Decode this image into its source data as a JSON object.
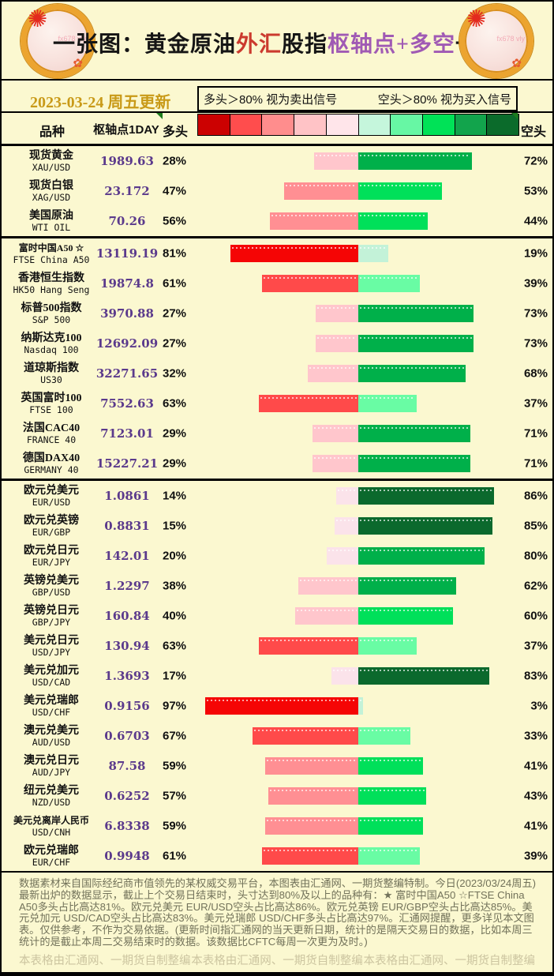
{
  "header": {
    "title_parts": [
      {
        "text": "一张图：黄金原油",
        "color": "#151515"
      },
      {
        "text": "外汇",
        "color": "#CB3A2E"
      },
      {
        "text": "股指",
        "color": "#151515"
      },
      {
        "text": "枢轴点+多空",
        "color": "#A05AB4"
      },
      {
        "text": "一览",
        "color": "#151515"
      }
    ],
    "logo_watermark": "fx678 vly"
  },
  "date_note": "2023-03-24 周五更新",
  "legend": {
    "long_rule": "多头＞80% 视为卖出信号",
    "short_rule": "空头＞80% 视为买入信号"
  },
  "columns": {
    "symbol": "品种",
    "pivot": "枢轴点1DAY",
    "long": "多头",
    "short": "空头"
  },
  "theme": {
    "background": "#FBF8D0",
    "pivot_value_color": "#5B3A8C",
    "date_color": "#C99A18",
    "flag_color": "#1E7C1E",
    "long_bucket_colors": [
      "#FBE3EA",
      "#FFC6CC",
      "#FF8F93",
      "#FF4A4A",
      "#F50505"
    ],
    "short_bucket_colors": [
      "#C3F2D8",
      "#69FCA4",
      "#00E05A",
      "#00B04A",
      "#0B692D"
    ]
  },
  "chart_data": {
    "type": "bar",
    "title": "一张图：黄金原油外汇股指枢轴点+多空一览",
    "update_note": "2023-03-24 周五更新",
    "orientation": "horizontal diverging stacked bars, pivot split point, 2px per percent",
    "color_scale": [
      "#CC0101",
      "#FF4D4D",
      "#FF8D8D",
      "#FFC3C6",
      "#FFE5EA",
      "#C5F6DC",
      "#67F7A4",
      "#00E257",
      "#12A44C",
      "#0B6B2B"
    ],
    "group_sizes": [
      3,
      8,
      13
    ],
    "categories": [
      "现货黄金",
      "现货白银",
      "美国原油",
      "富时中国A50 ☆",
      "香港恒生指数",
      "标普500指数",
      "纳斯达克100",
      "道琼斯指数",
      "英国富时100",
      "法国CAC40",
      "德国DAX40",
      "欧元兑美元",
      "欧元兑英镑",
      "欧元兑日元",
      "英镑兑美元",
      "英镑兑日元",
      "美元兑日元",
      "美元兑加元",
      "美元兑瑞郎",
      "澳元兑美元",
      "澳元兑日元",
      "纽元兑美元",
      "美元兑离岸人民币",
      "欧元兑瑞郎"
    ],
    "codes": [
      "XAU/USD",
      "XAG/USD",
      "WTI OIL",
      "FTSE China A50",
      "HK50 Hang Seng",
      "S&P 500",
      "Nasdaq 100",
      "US30",
      "FTSE 100",
      "FRANCE 40",
      "GERMANY 40",
      "EUR/USD",
      "EUR/GBP",
      "EUR/JPY",
      "GBP/USD",
      "GBP/JPY",
      "USD/JPY",
      "USD/CAD",
      "USD/CHF",
      "AUD/USD",
      "AUD/JPY",
      "NZD/USD",
      "USD/CNH",
      "EUR/CHF"
    ],
    "pivots": [
      "1989.63",
      "23.172",
      "70.26",
      "13119.19",
      "19874.8",
      "3970.88",
      "12692.09",
      "32271.65",
      "7552.63",
      "7123.01",
      "15227.21",
      "1.0861",
      "0.8831",
      "142.01",
      "1.2297",
      "160.84",
      "130.94",
      "1.3693",
      "0.9156",
      "0.6703",
      "87.58",
      "0.6252",
      "6.8338",
      "0.9948"
    ],
    "series": [
      {
        "name": "多头",
        "values": [
          28,
          47,
          56,
          81,
          61,
          27,
          27,
          32,
          63,
          29,
          29,
          14,
          15,
          20,
          38,
          40,
          63,
          17,
          97,
          67,
          59,
          57,
          59,
          61
        ]
      },
      {
        "name": "空头",
        "values": [
          72,
          53,
          44,
          19,
          39,
          73,
          73,
          68,
          37,
          71,
          71,
          86,
          85,
          80,
          62,
          60,
          37,
          83,
          3,
          33,
          41,
          43,
          41,
          39
        ]
      }
    ]
  },
  "footer": {
    "paragraph": "数据素材来自国际经纪商市值领先的某权威交易平台，本图表由汇通网、一期货整编特制。今日(2023/03/24周五)最新出炉的数据显示，截止上个交易日结束时，头寸达到80%及以上的品种有：★ 富时中国A50 ☆FTSE China A50多头占比高达81%。欧元兑美元 EUR/USD空头占比高达86%。欧元兑英镑 EUR/GBP空头占比高达85%。美元兑加元 USD/CAD空头占比高达83%。美元兑瑞郎 USD/CHF多头占比高达97%。汇通网提醒，更多详见本文图表。仅供参考，不作为交易依据。(更新时间指汇通网的当天更新日期，统计的是隔天交易日的数据，比如本周三统计的是截止本周二交易结束时的数据。该数据比CFTC每周一次更为及时。)",
    "watermark": "本表格由汇通网、一期货自制整编"
  }
}
